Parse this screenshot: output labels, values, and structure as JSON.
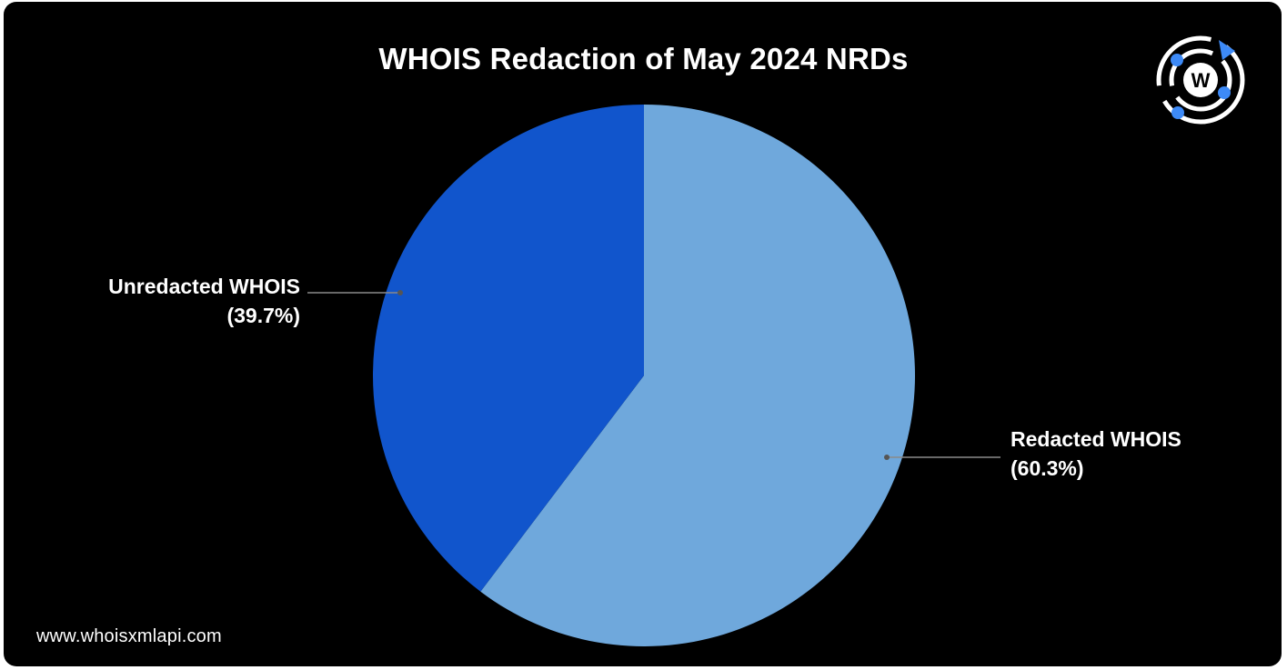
{
  "chart_data": {
    "type": "pie",
    "title": "WHOIS Redaction of May 2024 NRDs",
    "slices": [
      {
        "label": "Redacted WHOIS",
        "value_label": "(60.3%)",
        "value": 60.3,
        "color": "#6fa8dc"
      },
      {
        "label": "Unredacted WHOIS",
        "value_label": "(39.7%)",
        "value": 39.7,
        "color": "#1155cc"
      }
    ],
    "start_angle_deg": 0,
    "direction": "clockwise",
    "legend": "none",
    "leader_line_color": "#8a8a8a"
  },
  "footer": {
    "url": "www.whoisxmlapi.com"
  },
  "logo": {
    "icon": "whoisxmlapi-logo-icon",
    "letter": "W",
    "accent_color": "#3d8af7"
  },
  "background_color": "#000000"
}
